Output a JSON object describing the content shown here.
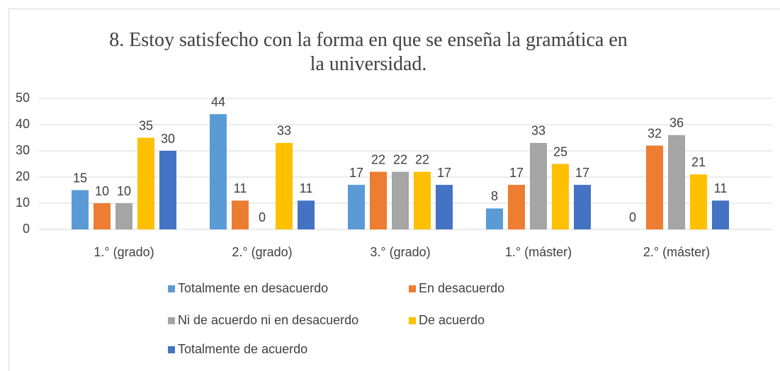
{
  "chart_data": {
    "type": "bar",
    "title": "8. Estoy satisfecho con la forma en que se enseña la gramática en la universidad.",
    "categories": [
      "1.° (grado)",
      "2.° (grado)",
      "3.° (grado)",
      "1.° (máster)",
      "2.° (máster)"
    ],
    "series": [
      {
        "name": "Totalmente en desacuerdo",
        "color": "#5b9bd5",
        "values": [
          15,
          44,
          17,
          8,
          0
        ]
      },
      {
        "name": "En desacuerdo",
        "color": "#ed7d31",
        "values": [
          10,
          11,
          22,
          17,
          32
        ]
      },
      {
        "name": "Ni de acuerdo ni en desacuerdo",
        "color": "#a5a5a5",
        "values": [
          10,
          0,
          22,
          33,
          36
        ]
      },
      {
        "name": "De acuerdo",
        "color": "#ffc000",
        "values": [
          35,
          33,
          22,
          25,
          21
        ]
      },
      {
        "name": "Totalmente de acuerdo",
        "color": "#4472c4",
        "values": [
          30,
          11,
          17,
          17,
          11
        ]
      }
    ],
    "ylim": [
      0,
      50
    ],
    "yticks": [
      0,
      10,
      20,
      30,
      40,
      50
    ],
    "grid": true,
    "legend": "bottom"
  }
}
